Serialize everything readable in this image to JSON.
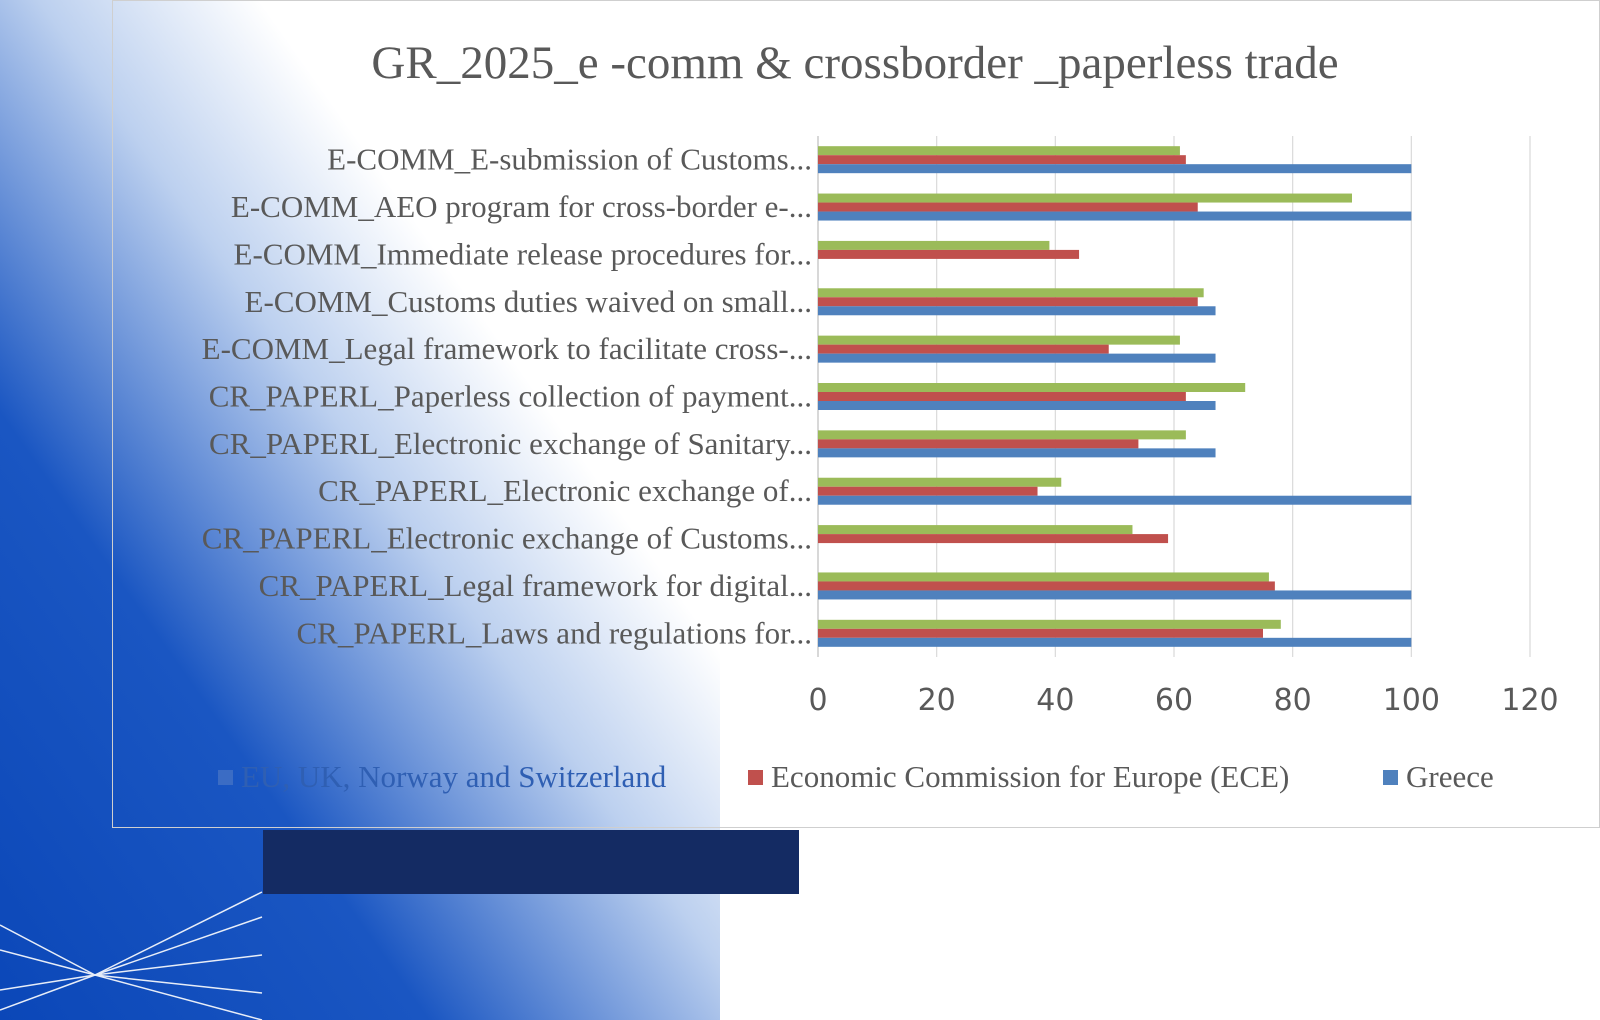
{
  "colors": {
    "series_eu": "#9bbb59",
    "series_ece": "#c0504d",
    "series_greece": "#4f81bd",
    "title_text": "#595959",
    "axis_text": "#595959",
    "gridline": "#d9d9d9",
    "slide_blue": "#0b47b8",
    "dark_bar": "#142b63"
  },
  "chart_data": {
    "type": "bar",
    "orientation": "horizontal",
    "title": "GR_2025_e -comm & crossborder _paperless trade",
    "categories": [
      "E-COMM_E-submission of Customs...",
      "E-COMM_AEO program for cross-border e-...",
      "E-COMM_Immediate release procedures for...",
      "E-COMM_Customs duties waived on small...",
      "E-COMM_Legal framework to facilitate cross-...",
      "CR_PAPERL_Paperless collection of payment...",
      "CR_PAPERL_Electronic exchange of Sanitary...",
      "CR_PAPERL_Electronic exchange of...",
      "CR_PAPERL_Electronic exchange of Customs...",
      "CR_PAPERL_Legal framework for digital...",
      "CR_PAPERL_Laws and regulations for..."
    ],
    "series": [
      {
        "name": "EU, UK, Norway and Switzerland",
        "values": [
          61,
          90,
          39,
          65,
          61,
          72,
          62,
          41,
          53,
          76,
          78
        ]
      },
      {
        "name": "Economic Commission for Europe (ECE)",
        "values": [
          62,
          64,
          44,
          64,
          49,
          62,
          54,
          37,
          59,
          77,
          75
        ]
      },
      {
        "name": "Greece",
        "values": [
          100,
          100,
          0,
          67,
          67,
          67,
          67,
          100,
          0,
          100,
          100
        ]
      }
    ],
    "xlim": [
      0,
      120
    ],
    "xticks": [
      "0",
      "20",
      "40",
      "60",
      "80",
      "100",
      "120"
    ],
    "grid": true,
    "legend": "bottom"
  }
}
